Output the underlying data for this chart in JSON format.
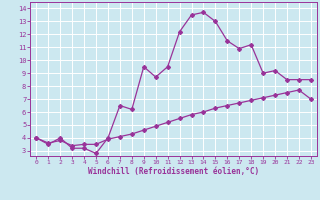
{
  "title": "",
  "xlabel": "Windchill (Refroidissement éolien,°C)",
  "x_ticks": [
    0,
    1,
    2,
    3,
    4,
    5,
    6,
    7,
    8,
    9,
    10,
    11,
    12,
    13,
    14,
    15,
    16,
    17,
    18,
    19,
    20,
    21,
    22,
    23
  ],
  "y_ticks": [
    3,
    4,
    5,
    6,
    7,
    8,
    9,
    10,
    11,
    12,
    13,
    14
  ],
  "ylim": [
    2.6,
    14.5
  ],
  "xlim": [
    -0.5,
    23.5
  ],
  "bg_color": "#cce8f0",
  "line_color": "#993399",
  "grid_color": "#ffffff",
  "series1_x": [
    0,
    1,
    2,
    3,
    4,
    5,
    6,
    7,
    8,
    9,
    10,
    11,
    12,
    13,
    14,
    15,
    16,
    17,
    18,
    19,
    20,
    21,
    22,
    23
  ],
  "series1_y": [
    4.0,
    3.5,
    4.0,
    3.2,
    3.2,
    2.8,
    4.0,
    6.5,
    6.2,
    9.5,
    8.7,
    9.5,
    12.2,
    13.5,
    13.7,
    13.0,
    11.5,
    10.9,
    11.2,
    9.0,
    9.2,
    8.5,
    8.5,
    8.5
  ],
  "series2_x": [
    0,
    1,
    2,
    3,
    4,
    5,
    6,
    7,
    8,
    9,
    10,
    11,
    12,
    13,
    14,
    15,
    16,
    17,
    18,
    19,
    20,
    21,
    22,
    23
  ],
  "series2_y": [
    4.0,
    3.6,
    3.8,
    3.4,
    3.5,
    3.5,
    3.9,
    4.1,
    4.3,
    4.6,
    4.9,
    5.2,
    5.5,
    5.8,
    6.0,
    6.3,
    6.5,
    6.7,
    6.9,
    7.1,
    7.3,
    7.5,
    7.7,
    7.0
  ]
}
